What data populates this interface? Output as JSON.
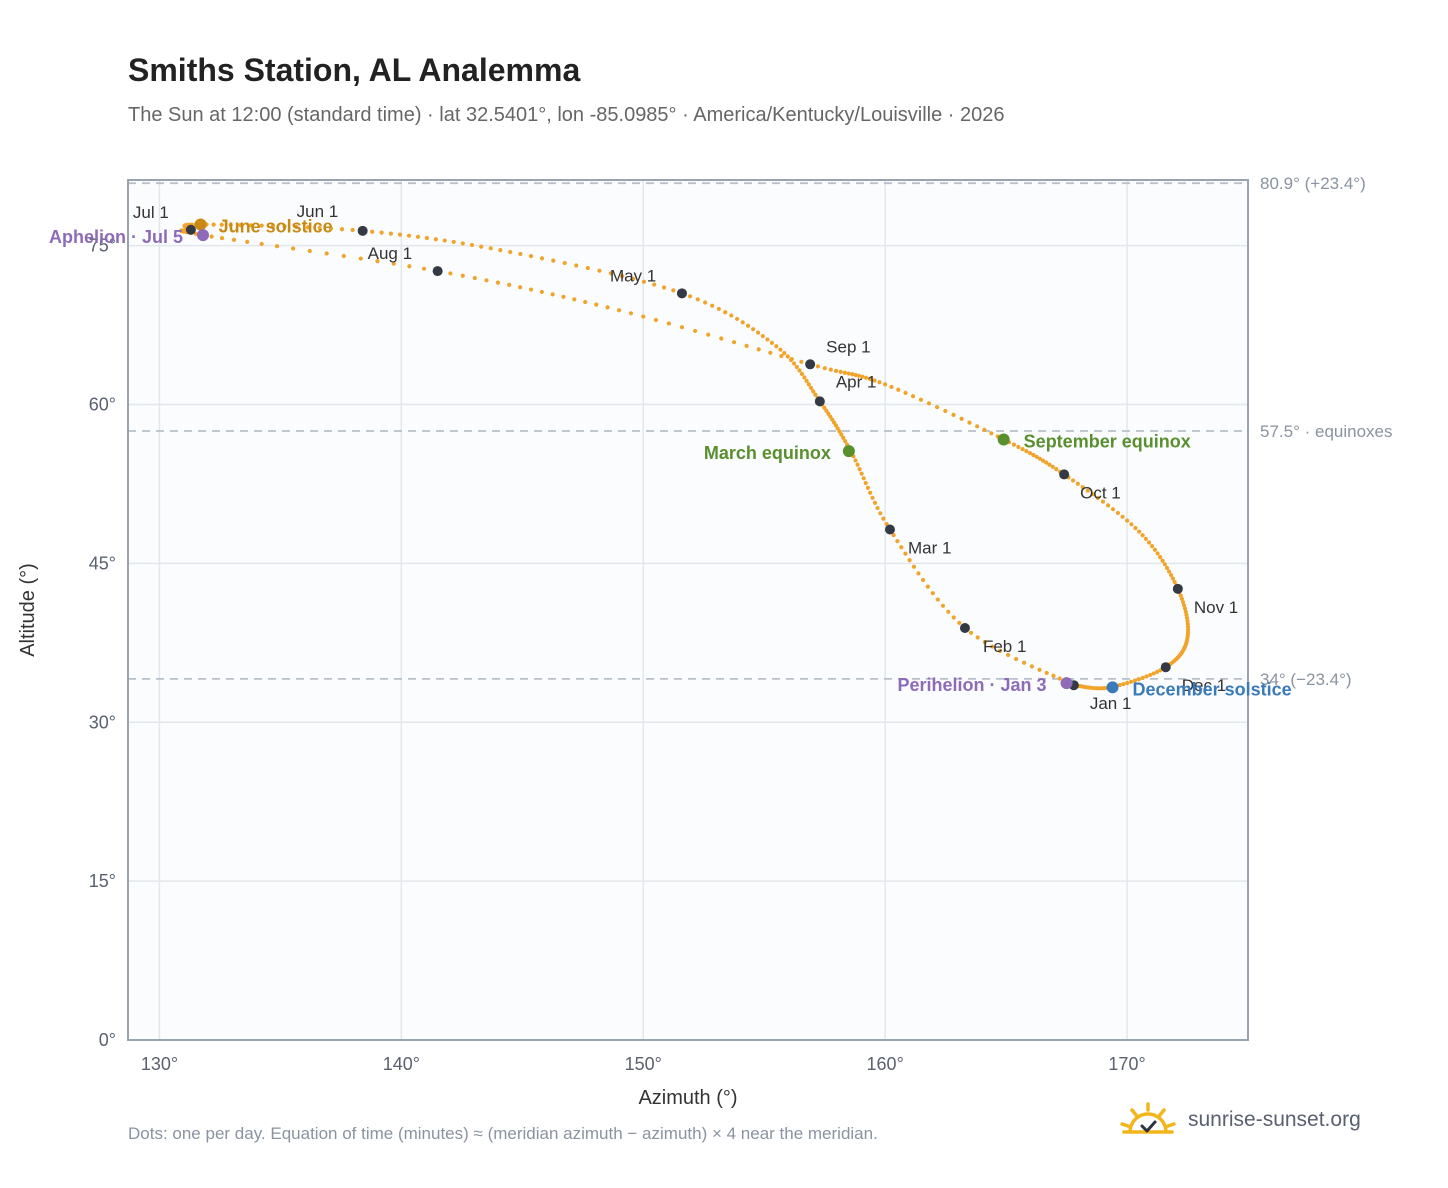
{
  "header": {
    "title": "Smiths Station, AL Analemma",
    "subtitle": "The Sun at 12:00 (standard time) · lat 32.5401°, lon -85.0985° · America/Kentucky/Louisville · 2026"
  },
  "footer": {
    "note": "Dots: one per day. Equation of time (minutes) ≈ (meridian azimuth − azimuth) × 4 near the meridian.",
    "brand": "sunrise-sunset.org"
  },
  "colors": {
    "path": "#f2a32a",
    "month_marker": "#333a45",
    "equinox": "#5a8f2e",
    "june_solstice": "#c88a12",
    "december_solstice": "#3a7ab8",
    "apsis": "#8e6bb8",
    "grid": "#e3e7ec",
    "frame": "#9aa4b0",
    "plot_bg": "#fafcfe"
  },
  "chart_data": {
    "type": "scatter",
    "xlabel": "Azimuth (°)",
    "ylabel": "Altitude (°)",
    "xlim": [
      128.7,
      175
    ],
    "ylim": [
      0,
      81.2
    ],
    "x_ticks": [
      "130°",
      "140°",
      "150°",
      "160°",
      "170°"
    ],
    "x_tick_values": [
      130,
      140,
      150,
      160,
      170
    ],
    "y_ticks": [
      "0°",
      "15°",
      "30°",
      "45°",
      "60°",
      "75°"
    ],
    "y_tick_values": [
      0,
      15,
      30,
      45,
      60,
      75
    ],
    "grid": true,
    "reference_lines": [
      {
        "y": 80.9,
        "label": "80.9° (+23.4°)"
      },
      {
        "y": 57.5,
        "label": "57.5° · equinoxes"
      },
      {
        "y": 34.1,
        "label": "34° (−23.4°)"
      }
    ],
    "path_waypoints": [
      {
        "x": 167.8,
        "y": 33.5
      },
      {
        "x": 163.3,
        "y": 38.9
      },
      {
        "x": 160.2,
        "y": 48.2
      },
      {
        "x": 158.6,
        "y": 55.5
      },
      {
        "x": 157.3,
        "y": 60.3
      },
      {
        "x": 155.5,
        "y": 65.5
      },
      {
        "x": 151.6,
        "y": 70.5
      },
      {
        "x": 144.5,
        "y": 74.4
      },
      {
        "x": 138.4,
        "y": 76.4
      },
      {
        "x": 131.7,
        "y": 77.0
      },
      {
        "x": 131.3,
        "y": 76.5
      },
      {
        "x": 131.8,
        "y": 76.0
      },
      {
        "x": 141.5,
        "y": 72.6
      },
      {
        "x": 149.0,
        "y": 68.9
      },
      {
        "x": 156.9,
        "y": 63.8
      },
      {
        "x": 160.0,
        "y": 61.9
      },
      {
        "x": 164.9,
        "y": 56.7
      },
      {
        "x": 167.4,
        "y": 53.4
      },
      {
        "x": 170.5,
        "y": 48.0
      },
      {
        "x": 172.1,
        "y": 42.6
      },
      {
        "x": 172.5,
        "y": 38.0
      },
      {
        "x": 171.6,
        "y": 35.2
      },
      {
        "x": 169.3,
        "y": 33.3
      },
      {
        "x": 167.8,
        "y": 33.5
      }
    ],
    "month_markers": [
      {
        "label": "Jan 1",
        "x": 167.8,
        "y": 33.5
      },
      {
        "label": "Feb 1",
        "x": 163.3,
        "y": 38.9
      },
      {
        "label": "Mar 1",
        "x": 160.2,
        "y": 48.2
      },
      {
        "label": "Apr 1",
        "x": 157.3,
        "y": 60.3
      },
      {
        "label": "May 1",
        "x": 151.6,
        "y": 70.5
      },
      {
        "label": "Jun 1",
        "x": 138.4,
        "y": 76.4
      },
      {
        "label": "Jul 1",
        "x": 131.3,
        "y": 76.5
      },
      {
        "label": "Aug 1",
        "x": 141.5,
        "y": 72.6
      },
      {
        "label": "Sep 1",
        "x": 156.9,
        "y": 63.8
      },
      {
        "label": "Oct 1",
        "x": 167.4,
        "y": 53.4
      },
      {
        "label": "Nov 1",
        "x": 172.1,
        "y": 42.6
      },
      {
        "label": "Dec 1",
        "x": 171.6,
        "y": 35.2
      }
    ],
    "events": [
      {
        "label": "March equinox",
        "x": 158.5,
        "y": 55.6,
        "color": "#5a8f2e"
      },
      {
        "label": "September equinox",
        "x": 164.9,
        "y": 56.7,
        "color": "#5a8f2e"
      },
      {
        "label": "June solstice",
        "x": 131.7,
        "y": 77.0,
        "color": "#c88a12"
      },
      {
        "label": "December solstice",
        "x": 169.4,
        "y": 33.3,
        "color": "#3a7ab8"
      },
      {
        "label": "Aphelion · Jul 5",
        "x": 131.8,
        "y": 76.0,
        "color": "#8e6bb8"
      },
      {
        "label": "Perihelion · Jan 3",
        "x": 167.5,
        "y": 33.7,
        "color": "#8e6bb8"
      }
    ]
  }
}
